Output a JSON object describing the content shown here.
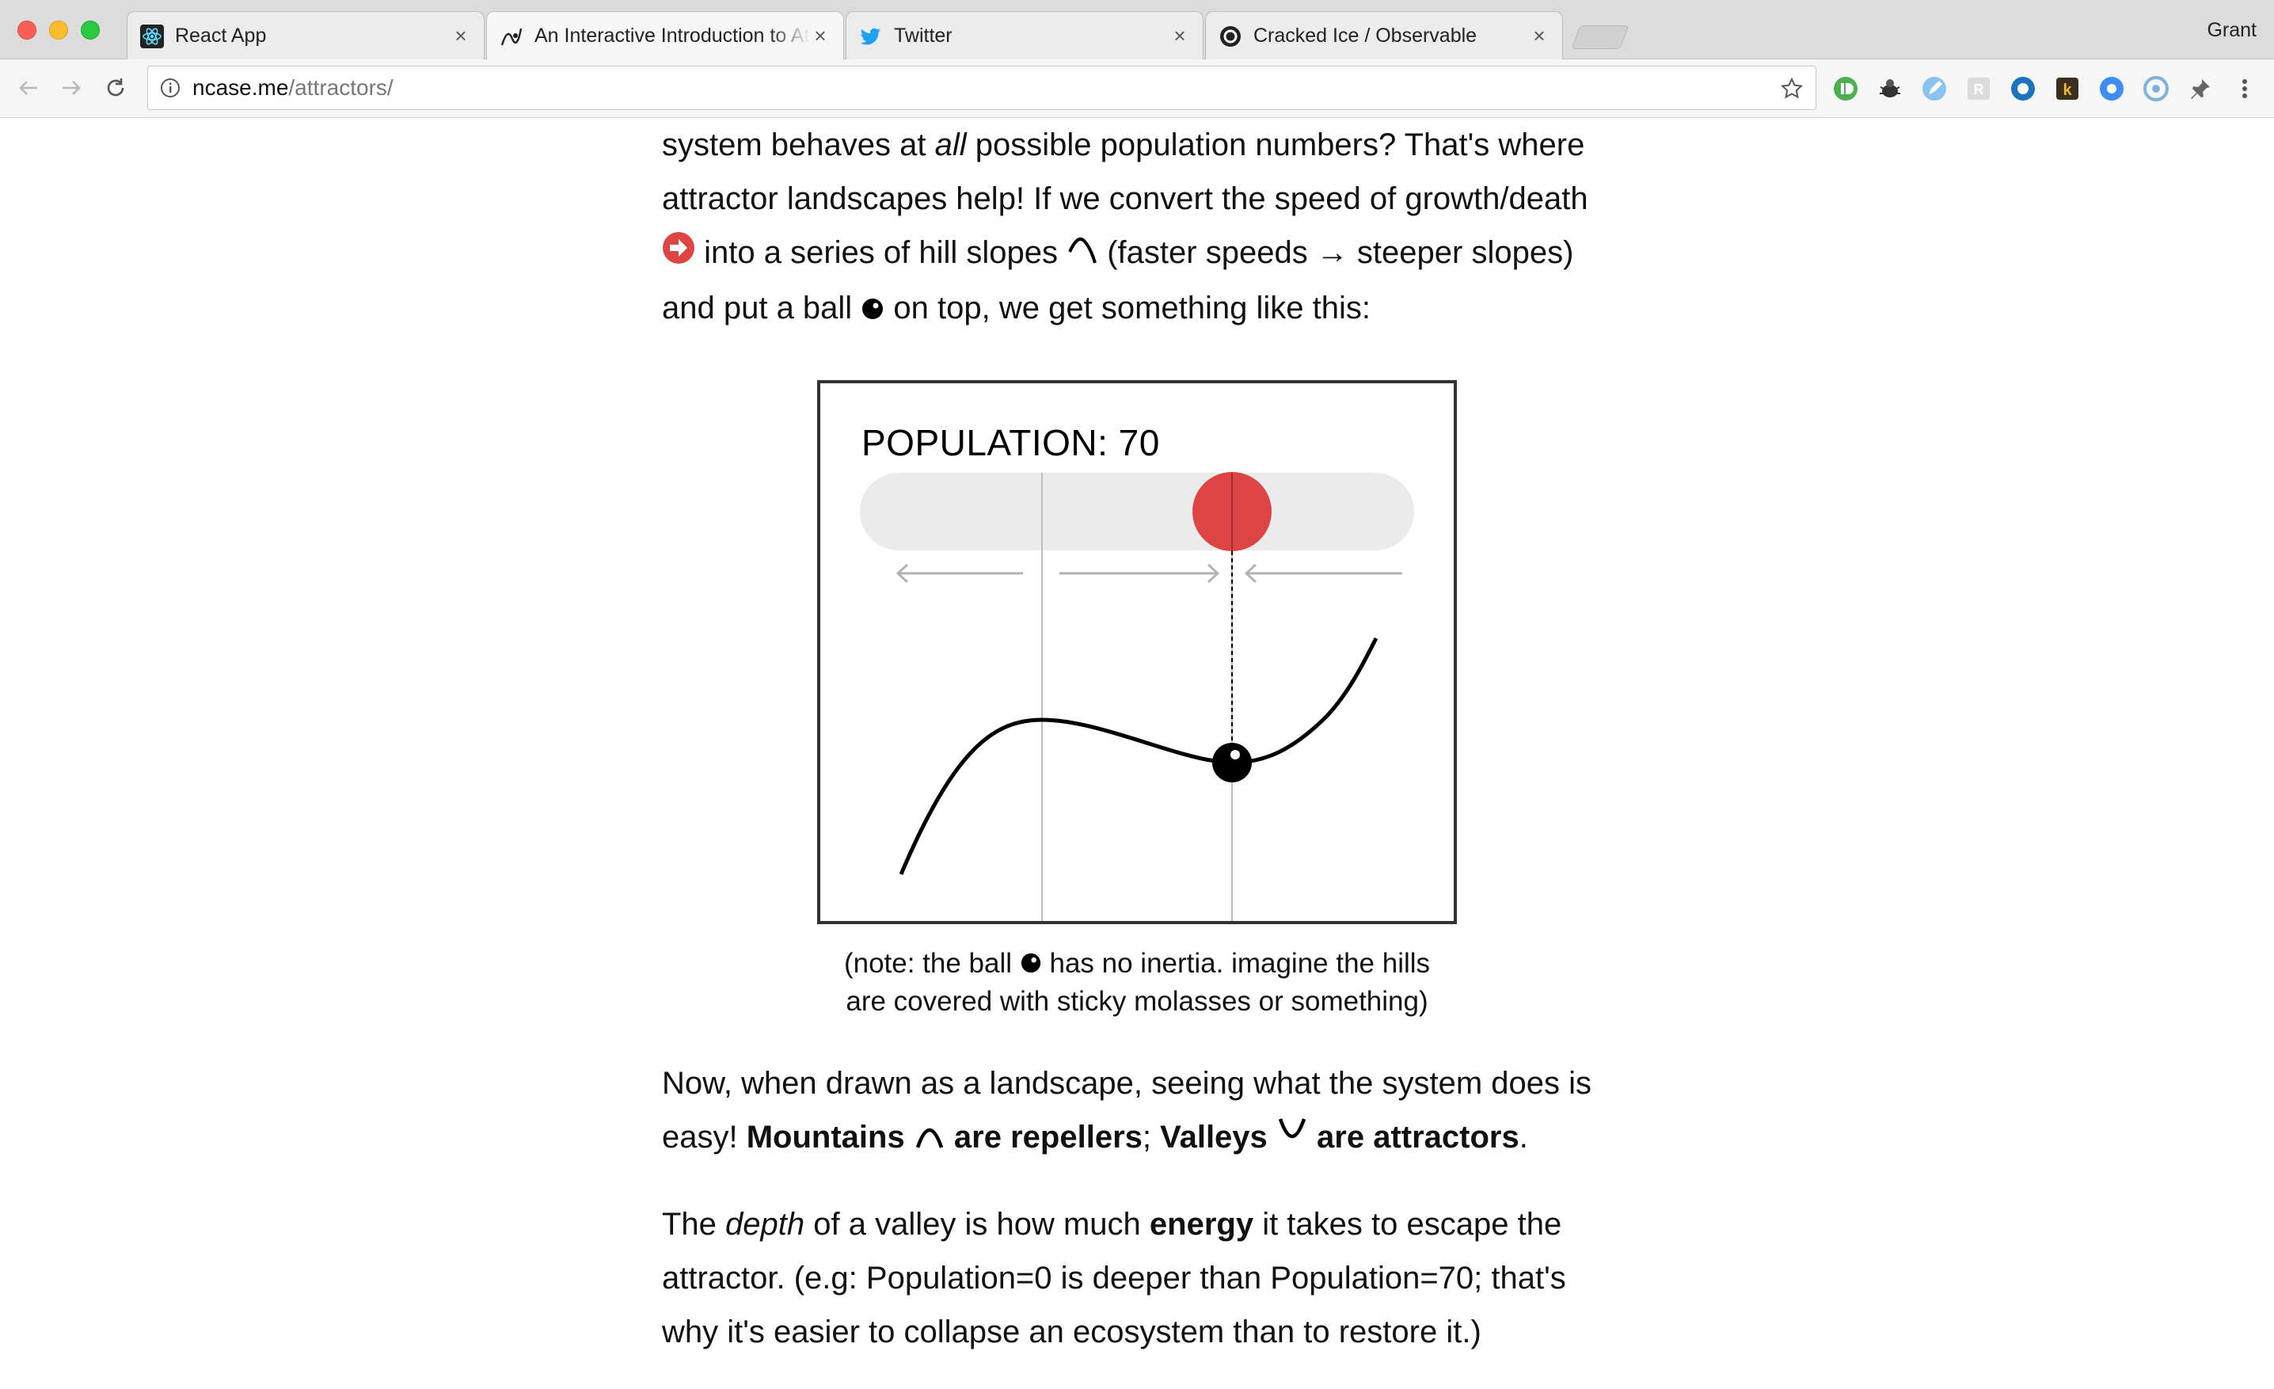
{
  "browser": {
    "tabs": [
      {
        "title": "React App",
        "icon": "react-icon"
      },
      {
        "title": "An Interactive Introduction to Attractor Landscapes",
        "icon": "ncase-icon",
        "active": true
      },
      {
        "title": "Twitter",
        "icon": "twitter-bird-icon"
      },
      {
        "title": "Cracked Ice / Observable",
        "icon": "observable-icon"
      }
    ],
    "profile_name": "Grant",
    "url_host": "ncase.me",
    "url_path": "/attractors/"
  },
  "article": {
    "p1_line1_a": "system behaves at ",
    "p1_line1_em": "all",
    "p1_line1_b": " possible population numbers? That's where",
    "p1_line2": "attractor landscapes help! If we convert the speed of growth/death",
    "p1_line3_a": " into a series of hill slopes ",
    "p1_line3_b": " (faster speeds → steeper slopes)",
    "p1_line4_a": "and put a ball ",
    "p1_line4_b": " on top, we get something like this:",
    "caption_line1_a": "(note: the ball ",
    "caption_line1_b": " has no inertia. imagine the hills",
    "caption_line2": "are covered with sticky molasses or something)",
    "p2_line1": "Now, when drawn as a landscape, seeing what the system does is",
    "p2_line2_a": "easy! ",
    "p2_line2_mountains": "Mountains ",
    "p2_line2_repellers": " are repellers",
    "p2_line2_sep": "; ",
    "p2_line2_valleys": "Valleys ",
    "p2_line2_attractors": " are attractors",
    "p2_line2_end": ".",
    "p3_line1_a": "The ",
    "p3_line1_em": "depth",
    "p3_line1_b": " of a valley is how much ",
    "p3_line1_strong": "energy",
    "p3_line1_c": " it takes to escape the",
    "p3_line2": "attractor. (e.g: Population=0 is deeper than Population=70; that's",
    "p3_line3": "why it's easier to collapse an ecosystem than to restore it.)"
  },
  "figure": {
    "population_label": "POPULATION:",
    "population_value": "70",
    "ball_color": "#dd4444",
    "arrows": [
      "left",
      "right",
      "left"
    ]
  }
}
